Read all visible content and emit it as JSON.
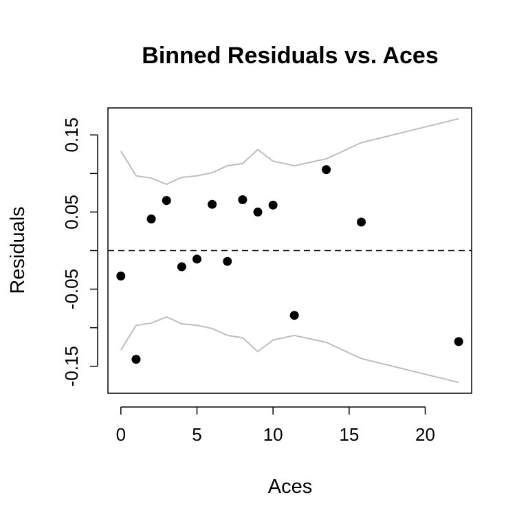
{
  "chart_data": {
    "type": "scatter",
    "title": "Binned Residuals vs. Aces",
    "xlabel": "Aces",
    "ylabel": "Residuals",
    "xlim": [
      -0.85,
      23.05
    ],
    "ylim": [
      -0.185,
      0.185
    ],
    "xticks": [
      0,
      5,
      10,
      15,
      20
    ],
    "xtick_labels": [
      "0",
      "5",
      "10",
      "15",
      "20"
    ],
    "yticks": [
      -0.15,
      -0.1,
      -0.05,
      0.0,
      0.05,
      0.1,
      0.15
    ],
    "ytick_labels": [
      "-0.15",
      "",
      "-0.05",
      "",
      "0.05",
      "",
      "0.15"
    ],
    "grid": false,
    "reference_line": {
      "y": 0,
      "style": "dashed",
      "color": "#000000"
    },
    "points": {
      "x": [
        0,
        1,
        2,
        3,
        4,
        5,
        6,
        7,
        8,
        9,
        10,
        11.4,
        13.5,
        15.8,
        22.2
      ],
      "y": [
        -0.033,
        -0.141,
        0.041,
        0.065,
        -0.021,
        -0.011,
        0.06,
        -0.014,
        0.066,
        0.05,
        0.059,
        -0.084,
        0.105,
        0.037,
        -0.118
      ],
      "color": "#000000"
    },
    "bounds": {
      "x": [
        0,
        1,
        2,
        3,
        4,
        5,
        6,
        7,
        8,
        9,
        10,
        11.4,
        13.5,
        15.8,
        22.2
      ],
      "upper": [
        0.129,
        0.097,
        0.094,
        0.086,
        0.095,
        0.097,
        0.101,
        0.11,
        0.113,
        0.131,
        0.116,
        0.11,
        0.119,
        0.14,
        0.171
      ],
      "lower": [
        -0.129,
        -0.097,
        -0.094,
        -0.086,
        -0.095,
        -0.097,
        -0.101,
        -0.11,
        -0.113,
        -0.131,
        -0.116,
        -0.11,
        -0.119,
        -0.14,
        -0.171
      ],
      "color": "#bebebe"
    }
  }
}
